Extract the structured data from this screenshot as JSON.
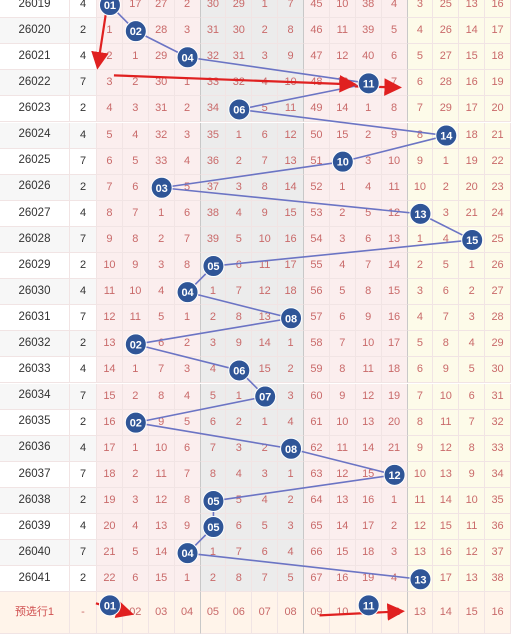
{
  "colors": {
    "ball": "#2f5597",
    "ball_stroke": "#ffffff",
    "connector": "#6b74c4",
    "arrow": "#e02020",
    "bg_pink": "#fbeeee",
    "bg_gray": "#ececec",
    "bg_yellow": "#fdfbe9"
  },
  "footer": {
    "label": "预选行1",
    "sum": "-",
    "numbers": [
      "01",
      "02",
      "03",
      "04",
      "05",
      "06",
      "07",
      "08",
      "09",
      "10",
      "11",
      "12",
      "13",
      "14",
      "15",
      "16"
    ],
    "selected": [
      "01",
      "11"
    ]
  },
  "rows": [
    {
      "issue": "26019",
      "sum": "4",
      "cells": [
        "01",
        "17",
        "27",
        "2",
        "30",
        "29",
        "1",
        "7",
        "45",
        "10",
        "38",
        "4",
        "3",
        "25",
        "13",
        "16"
      ],
      "hit": 1
    },
    {
      "issue": "26020",
      "sum": "2",
      "cells": [
        "1",
        "02",
        "28",
        "3",
        "31",
        "30",
        "2",
        "8",
        "46",
        "11",
        "39",
        "5",
        "4",
        "26",
        "14",
        "17"
      ],
      "hit": 2
    },
    {
      "issue": "26021",
      "sum": "4",
      "cells": [
        "2",
        "1",
        "29",
        "04",
        "32",
        "31",
        "3",
        "9",
        "47",
        "12",
        "40",
        "6",
        "5",
        "27",
        "15",
        "18"
      ],
      "hit": 4
    },
    {
      "issue": "26022",
      "sum": "7",
      "cells": [
        "3",
        "2",
        "30",
        "1",
        "33",
        "32",
        "4",
        "10",
        "48",
        "13",
        "11",
        "7",
        "6",
        "28",
        "16",
        "19"
      ],
      "hit": 11
    },
    {
      "issue": "26023",
      "sum": "2",
      "cells": [
        "4",
        "3",
        "31",
        "2",
        "34",
        "06",
        "5",
        "11",
        "49",
        "14",
        "1",
        "8",
        "7",
        "29",
        "17",
        "20"
      ],
      "hit": 6
    },
    {
      "issue": "26024",
      "sum": "4",
      "cells": [
        "5",
        "4",
        "32",
        "3",
        "35",
        "1",
        "6",
        "12",
        "50",
        "15",
        "2",
        "9",
        "8",
        "14",
        "18",
        "21"
      ],
      "hit": 14
    },
    {
      "issue": "26025",
      "sum": "7",
      "cells": [
        "6",
        "5",
        "33",
        "4",
        "36",
        "2",
        "7",
        "13",
        "51",
        "10",
        "3",
        "10",
        "9",
        "1",
        "19",
        "22"
      ],
      "hit": 10
    },
    {
      "issue": "26026",
      "sum": "2",
      "cells": [
        "7",
        "6",
        "03",
        "5",
        "37",
        "3",
        "8",
        "14",
        "52",
        "1",
        "4",
        "11",
        "10",
        "2",
        "20",
        "23"
      ],
      "hit": 3
    },
    {
      "issue": "26027",
      "sum": "4",
      "cells": [
        "8",
        "7",
        "1",
        "6",
        "38",
        "4",
        "9",
        "15",
        "53",
        "2",
        "5",
        "12",
        "13",
        "3",
        "21",
        "24"
      ],
      "hit": 13
    },
    {
      "issue": "26028",
      "sum": "7",
      "cells": [
        "9",
        "8",
        "2",
        "7",
        "39",
        "5",
        "10",
        "16",
        "54",
        "3",
        "6",
        "13",
        "1",
        "4",
        "15",
        "25"
      ],
      "hit": 15
    },
    {
      "issue": "26029",
      "sum": "2",
      "cells": [
        "10",
        "9",
        "3",
        "8",
        "05",
        "6",
        "11",
        "17",
        "55",
        "4",
        "7",
        "14",
        "2",
        "5",
        "1",
        "26"
      ],
      "hit": 5
    },
    {
      "issue": "26030",
      "sum": "4",
      "cells": [
        "11",
        "10",
        "4",
        "04",
        "1",
        "7",
        "12",
        "18",
        "56",
        "5",
        "8",
        "15",
        "3",
        "6",
        "2",
        "27"
      ],
      "hit": 4
    },
    {
      "issue": "26031",
      "sum": "7",
      "cells": [
        "12",
        "11",
        "5",
        "1",
        "2",
        "8",
        "13",
        "08",
        "57",
        "6",
        "9",
        "16",
        "4",
        "7",
        "3",
        "28"
      ],
      "hit": 8
    },
    {
      "issue": "26032",
      "sum": "2",
      "cells": [
        "13",
        "02",
        "6",
        "2",
        "3",
        "9",
        "14",
        "1",
        "58",
        "7",
        "10",
        "17",
        "5",
        "8",
        "4",
        "29"
      ],
      "hit": 2
    },
    {
      "issue": "26033",
      "sum": "4",
      "cells": [
        "14",
        "1",
        "7",
        "3",
        "4",
        "06",
        "15",
        "2",
        "59",
        "8",
        "11",
        "18",
        "6",
        "9",
        "5",
        "30"
      ],
      "hit": 6
    },
    {
      "issue": "26034",
      "sum": "7",
      "cells": [
        "15",
        "2",
        "8",
        "4",
        "5",
        "1",
        "07",
        "3",
        "60",
        "9",
        "12",
        "19",
        "7",
        "10",
        "6",
        "31"
      ],
      "hit": 7
    },
    {
      "issue": "26035",
      "sum": "2",
      "cells": [
        "16",
        "02",
        "9",
        "5",
        "6",
        "2",
        "1",
        "4",
        "61",
        "10",
        "13",
        "20",
        "8",
        "11",
        "7",
        "32"
      ],
      "hit": 2
    },
    {
      "issue": "26036",
      "sum": "4",
      "cells": [
        "17",
        "1",
        "10",
        "6",
        "7",
        "3",
        "2",
        "08",
        "62",
        "11",
        "14",
        "21",
        "9",
        "12",
        "8",
        "33"
      ],
      "hit": 8
    },
    {
      "issue": "26037",
      "sum": "7",
      "cells": [
        "18",
        "2",
        "11",
        "7",
        "8",
        "4",
        "3",
        "1",
        "63",
        "12",
        "15",
        "12",
        "10",
        "13",
        "9",
        "34"
      ],
      "hit": 12
    },
    {
      "issue": "26038",
      "sum": "2",
      "cells": [
        "19",
        "3",
        "12",
        "8",
        "05",
        "5",
        "4",
        "2",
        "64",
        "13",
        "16",
        "1",
        "11",
        "14",
        "10",
        "35"
      ],
      "hit": 5
    },
    {
      "issue": "26039",
      "sum": "4",
      "cells": [
        "20",
        "4",
        "13",
        "9",
        "05",
        "6",
        "5",
        "3",
        "65",
        "14",
        "17",
        "2",
        "12",
        "15",
        "11",
        "36"
      ],
      "hit": 5
    },
    {
      "issue": "26040",
      "sum": "7",
      "cells": [
        "21",
        "5",
        "14",
        "04",
        "1",
        "7",
        "6",
        "4",
        "66",
        "15",
        "18",
        "3",
        "13",
        "16",
        "12",
        "37"
      ],
      "hit": 4
    },
    {
      "issue": "26041",
      "sum": "2",
      "cells": [
        "22",
        "6",
        "15",
        "1",
        "2",
        "8",
        "7",
        "5",
        "67",
        "16",
        "19",
        "4",
        "13",
        "17",
        "13",
        "38"
      ],
      "hit": 13
    }
  ]
}
